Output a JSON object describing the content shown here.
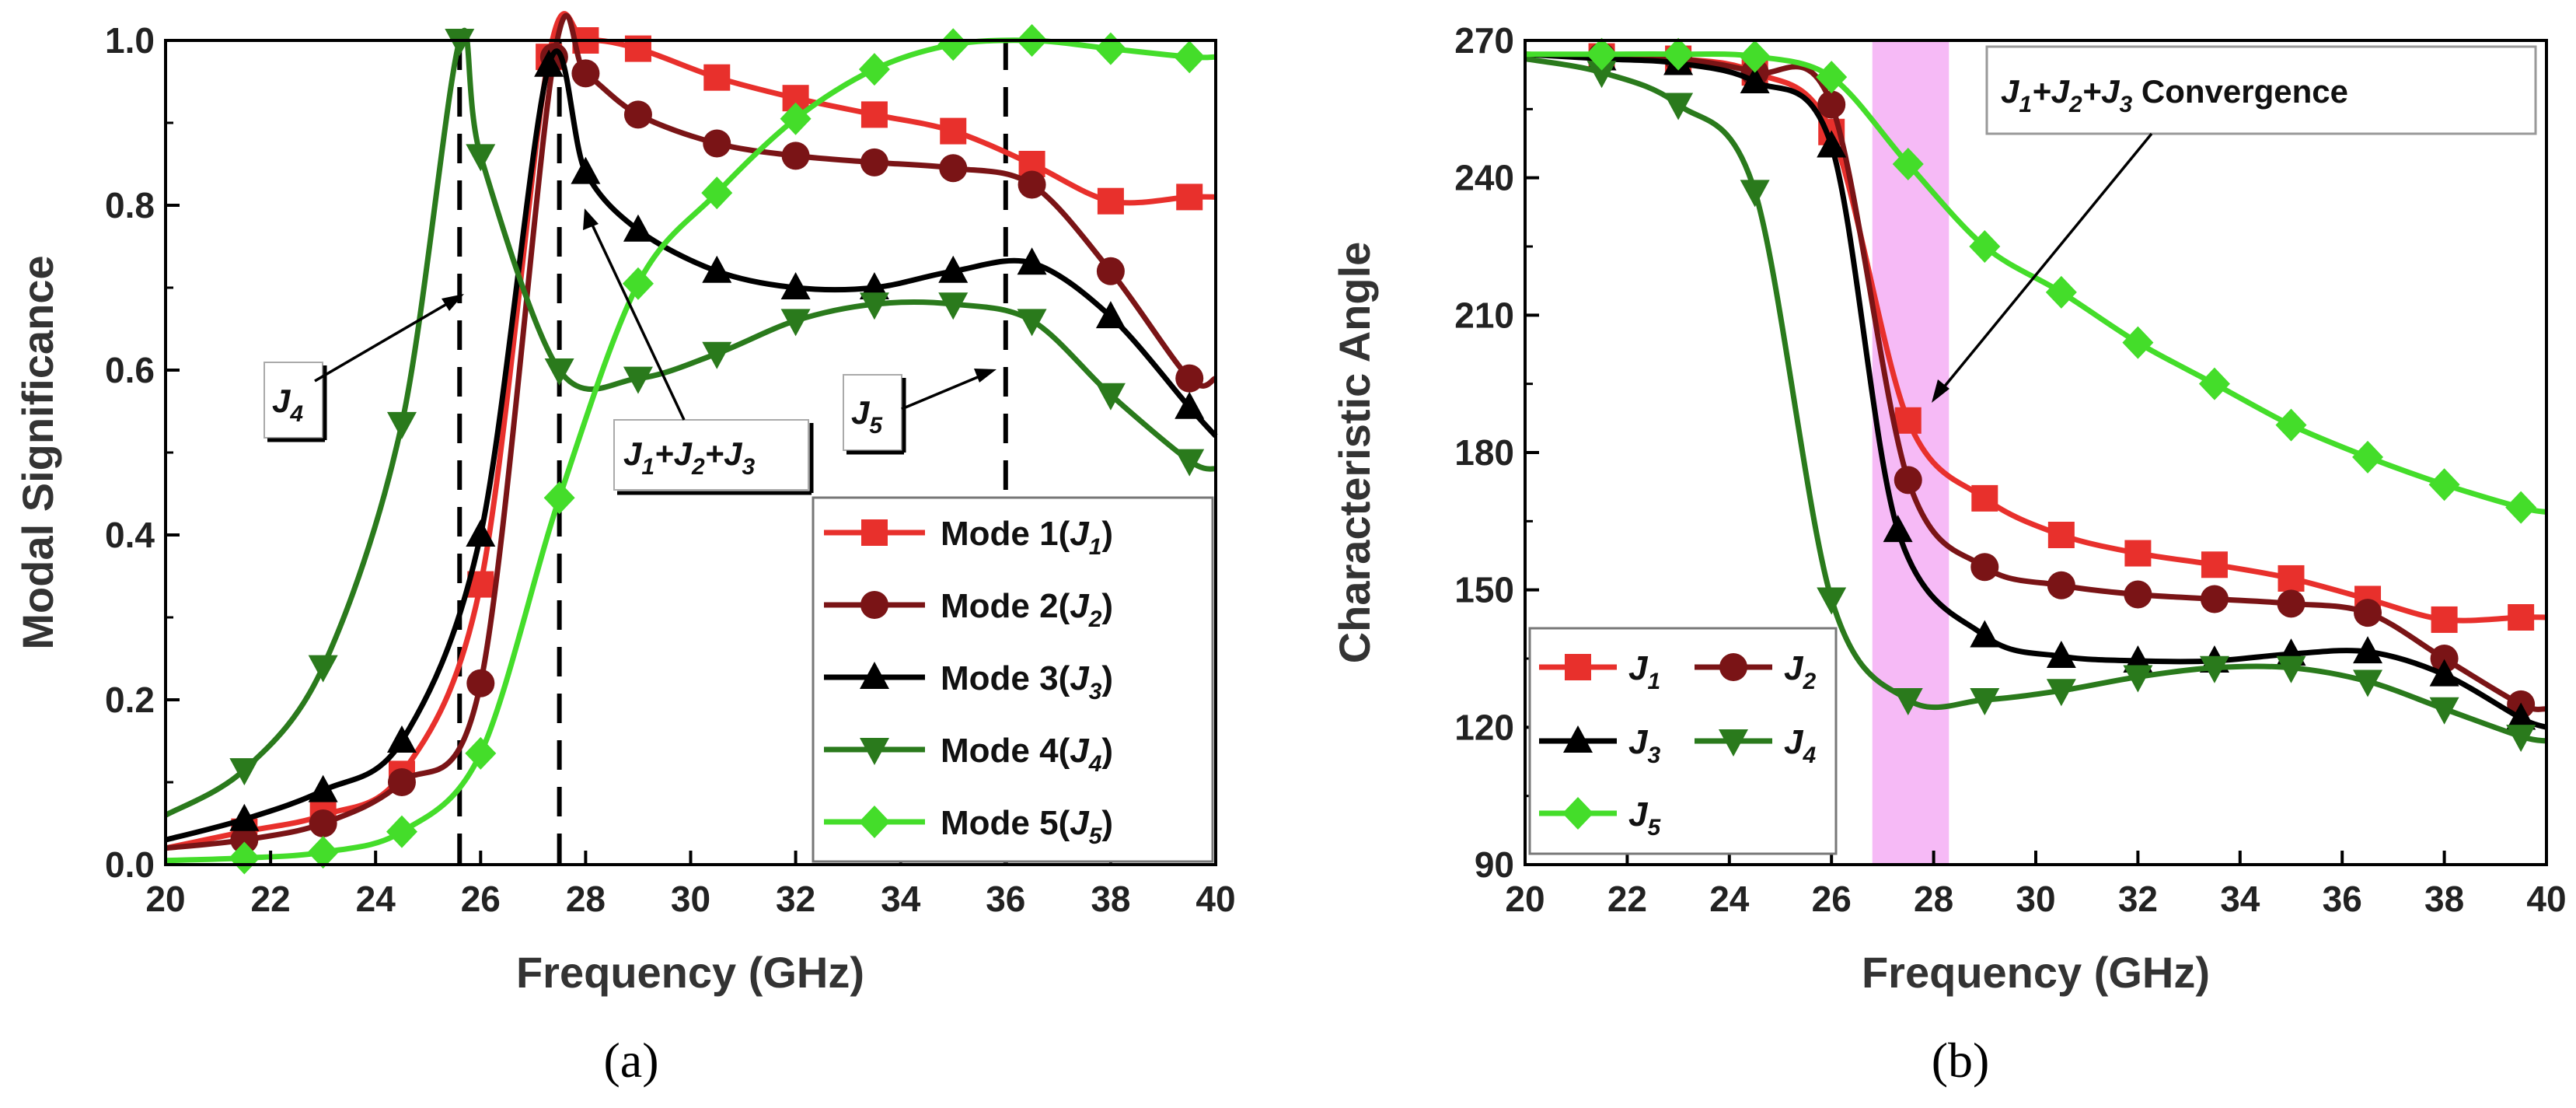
{
  "chart_data": [
    {
      "panel_label": "(a)",
      "type": "line",
      "xlabel": "Frequency (GHz)",
      "ylabel": "Modal Significance",
      "xlim": [
        20,
        40
      ],
      "ylim": [
        0.0,
        1.0
      ],
      "xticks": [
        20,
        22,
        24,
        26,
        28,
        30,
        32,
        34,
        36,
        38,
        40
      ],
      "yticks": [
        "0.0",
        "0.2",
        "0.4",
        "0.6",
        "0.8",
        "1.0"
      ],
      "vlines": [
        25.6,
        27.5,
        36.0
      ],
      "legend_position": "bottom-right",
      "series": [
        {
          "key": "m1",
          "name": "Mode 1(J1)",
          "legend_prefix": "Mode 1(",
          "legend_sub": "1",
          "legend_suffix": ")",
          "color": "#e8302c",
          "marker": "square",
          "x": [
            20,
            21.5,
            23,
            24.5,
            26,
            27.3,
            28,
            29,
            30.5,
            32,
            33.5,
            35,
            36.5,
            38,
            39.5,
            40
          ],
          "y": [
            0.02,
            0.04,
            0.06,
            0.11,
            0.34,
            0.98,
            1.0,
            0.99,
            0.955,
            0.93,
            0.91,
            0.89,
            0.85,
            0.805,
            0.81,
            0.81
          ]
        },
        {
          "key": "m2",
          "name": "Mode 2(J2)",
          "legend_prefix": "Mode 2(",
          "legend_sub": "2",
          "legend_suffix": ")",
          "color": "#7a1416",
          "marker": "circle",
          "x": [
            20,
            21.5,
            23,
            24.5,
            26,
            27.4,
            28,
            29,
            30.5,
            32,
            33.5,
            35,
            36.5,
            38,
            39.5,
            40
          ],
          "y": [
            0.02,
            0.03,
            0.05,
            0.1,
            0.22,
            0.98,
            0.96,
            0.91,
            0.875,
            0.86,
            0.852,
            0.845,
            0.825,
            0.72,
            0.59,
            0.59
          ]
        },
        {
          "key": "m3",
          "name": "Mode 3(J3)",
          "legend_prefix": "Mode 3(",
          "legend_sub": "3",
          "legend_suffix": ")",
          "color": "#000000",
          "marker": "triangle-up",
          "x": [
            20,
            21.5,
            23,
            24.5,
            26,
            27.3,
            28,
            29,
            30.5,
            32,
            33.5,
            35,
            36.5,
            38,
            39.5,
            40
          ],
          "y": [
            0.03,
            0.055,
            0.09,
            0.15,
            0.4,
            0.97,
            0.84,
            0.77,
            0.72,
            0.7,
            0.7,
            0.72,
            0.73,
            0.665,
            0.555,
            0.52
          ]
        },
        {
          "key": "m4",
          "name": "Mode 4(J4)",
          "legend_prefix": "Mode 4(",
          "legend_sub": "4",
          "legend_suffix": ")",
          "color": "#2a7a1c",
          "marker": "triangle-down",
          "x": [
            20,
            21.5,
            23,
            24.5,
            25.6,
            26,
            27.5,
            29,
            30.5,
            32,
            33.5,
            35,
            36.5,
            38,
            39.5,
            40
          ],
          "y": [
            0.06,
            0.115,
            0.24,
            0.535,
            1.0,
            0.86,
            0.6,
            0.59,
            0.62,
            0.66,
            0.68,
            0.68,
            0.66,
            0.57,
            0.49,
            0.48
          ]
        },
        {
          "key": "m5",
          "name": "Mode 5(J5)",
          "legend_prefix": "Mode 5(",
          "legend_sub": "5",
          "legend_suffix": ")",
          "color": "#44dd2a",
          "marker": "diamond",
          "x": [
            20,
            21.5,
            23,
            24.5,
            26,
            27.5,
            29,
            30.5,
            32,
            33.5,
            35,
            36.5,
            38,
            39.5,
            40
          ],
          "y": [
            0.005,
            0.008,
            0.015,
            0.04,
            0.135,
            0.445,
            0.705,
            0.815,
            0.905,
            0.965,
            0.995,
            1.0,
            0.99,
            0.98,
            0.98
          ]
        }
      ],
      "annotations": [
        {
          "base": "J",
          "sub": "4",
          "text": "J4"
        },
        {
          "text": "J1+J2+J3",
          "parts": [
            {
              "b": "J",
              "s": "1"
            },
            {
              "b": "+J",
              "s": "2"
            },
            {
              "b": "+J",
              "s": "3"
            }
          ]
        },
        {
          "base": "J",
          "sub": "5",
          "text": "J5"
        }
      ]
    },
    {
      "panel_label": "(b)",
      "type": "line",
      "xlabel": "Frequency (GHz)",
      "ylabel": "Characteristic Angle",
      "xlim": [
        20,
        40
      ],
      "ylim": [
        90,
        270
      ],
      "xticks": [
        20,
        22,
        24,
        26,
        28,
        30,
        32,
        34,
        36,
        38,
        40
      ],
      "yticks": [
        "90",
        "120",
        "150",
        "180",
        "210",
        "240",
        "270"
      ],
      "highlight_band": [
        26.8,
        28.3
      ],
      "legend_position": "bottom-left",
      "series": [
        {
          "key": "a1",
          "name": "J1",
          "legend_sub": "1",
          "color": "#e8302c",
          "marker": "square",
          "x": [
            20,
            21.5,
            23,
            24.5,
            26,
            27.5,
            29,
            30.5,
            32,
            33.5,
            35,
            36.5,
            38,
            39.5,
            40
          ],
          "y": [
            267,
            266.5,
            266,
            263,
            250,
            187,
            170,
            162,
            158,
            155.5,
            152.5,
            148,
            143.5,
            144,
            144
          ]
        },
        {
          "key": "a2",
          "name": "J2",
          "legend_sub": "2",
          "color": "#7a1416",
          "marker": "circle",
          "x": [
            20,
            21.5,
            23,
            24.5,
            26,
            27.5,
            29,
            30.5,
            32,
            33.5,
            35,
            36.5,
            38,
            39.5,
            40
          ],
          "y": [
            267,
            266.5,
            266,
            263,
            256,
            174,
            155,
            151,
            149,
            148,
            147,
            145,
            135,
            125,
            124
          ]
        },
        {
          "key": "a3",
          "name": "J3",
          "legend_sub": "3",
          "color": "#000000",
          "marker": "triangle-up",
          "x": [
            20,
            21.5,
            23,
            24.5,
            26,
            27.3,
            29,
            30.5,
            32,
            33.5,
            35,
            36.5,
            38,
            39.5,
            40
          ],
          "y": [
            267,
            266,
            265,
            261,
            247,
            163,
            140,
            135.5,
            134.5,
            134.5,
            136,
            136.5,
            131.5,
            122,
            120
          ]
        },
        {
          "key": "a4",
          "name": "J4",
          "legend_sub": "4",
          "color": "#2a7a1c",
          "marker": "triangle-down",
          "x": [
            20,
            21.5,
            23,
            24.5,
            26,
            27.5,
            29,
            30.5,
            32,
            33.5,
            35,
            36.5,
            38,
            39.5,
            40
          ],
          "y": [
            266,
            263,
            256,
            237,
            148,
            126,
            126,
            128,
            131,
            133,
            133,
            130,
            124,
            118,
            117
          ]
        },
        {
          "key": "a5",
          "name": "J5",
          "legend_sub": "5",
          "color": "#44dd2a",
          "marker": "diamond",
          "x": [
            20,
            21.5,
            23,
            24.5,
            26,
            27.5,
            29,
            30.5,
            32,
            33.5,
            35,
            36.5,
            38,
            39.5,
            40
          ],
          "y": [
            267,
            267,
            267,
            266.5,
            262,
            243,
            225,
            215,
            204,
            195,
            186,
            179,
            173,
            168,
            167
          ]
        }
      ],
      "annotations": [
        {
          "text": "J1+J2+J3 Convergence",
          "parts": [
            {
              "b": "J",
              "s": "1"
            },
            {
              "b": "+J",
              "s": "2"
            },
            {
              "b": "+J",
              "s": "3"
            }
          ],
          "suffix": " Convergence"
        }
      ]
    }
  ]
}
